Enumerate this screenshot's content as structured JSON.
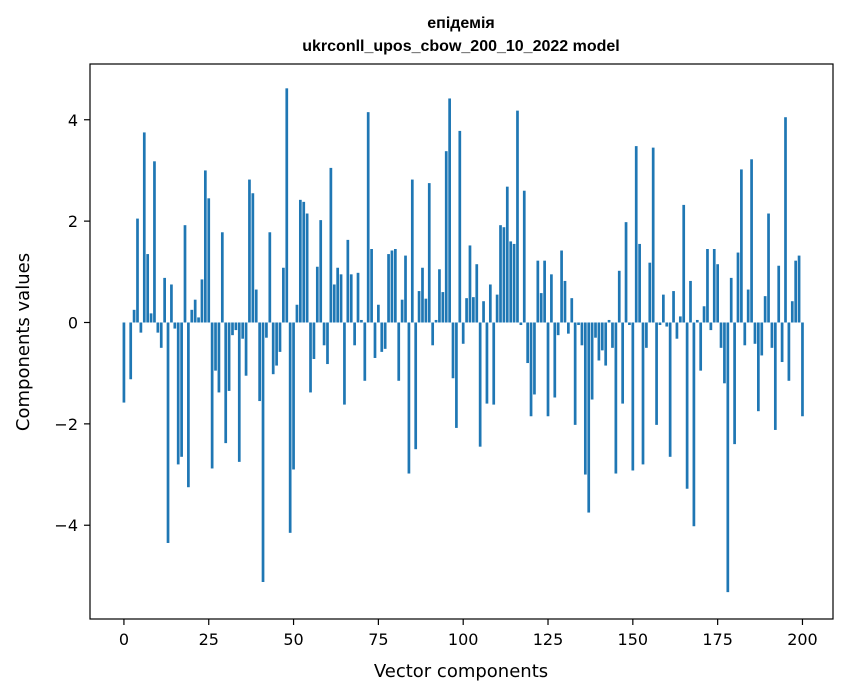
{
  "chart_data": {
    "type": "bar",
    "title": "епідемія",
    "subtitle": "ukrconll_upos_cbow_200_10_2022 model",
    "xlabel": "Vector components",
    "ylabel": "Components values",
    "xlim": [
      -10,
      209
    ],
    "ylim": [
      -5.85,
      5.1
    ],
    "x_ticks": [
      0,
      25,
      50,
      75,
      100,
      125,
      150,
      175,
      200
    ],
    "x_tick_labels": [
      "0",
      "25",
      "50",
      "75",
      "100",
      "125",
      "150",
      "175",
      "200"
    ],
    "y_ticks": [
      -4,
      -2,
      0,
      2,
      4
    ],
    "y_tick_labels": [
      "−4",
      "−2",
      "0",
      "2",
      "4"
    ],
    "grid": false,
    "bar_color": "#1f77b4",
    "values": [
      -1.58,
      0.0,
      -1.12,
      0.25,
      2.05,
      -0.2,
      3.75,
      1.35,
      0.18,
      3.18,
      -0.2,
      -0.5,
      0.88,
      -4.35,
      0.75,
      -0.12,
      -2.8,
      -2.65,
      1.92,
      -3.25,
      0.25,
      0.45,
      0.1,
      0.85,
      3.0,
      2.45,
      -2.88,
      -0.95,
      -1.38,
      1.78,
      -2.38,
      -1.35,
      -0.25,
      -0.15,
      -2.75,
      -0.32,
      -1.05,
      2.82,
      2.55,
      0.65,
      -1.55,
      -5.12,
      -0.3,
      1.78,
      -1.02,
      -0.85,
      -0.58,
      1.08,
      4.62,
      -4.15,
      -2.9,
      0.35,
      2.42,
      2.38,
      2.15,
      -1.38,
      -0.72,
      1.1,
      2.02,
      -0.45,
      -0.82,
      3.05,
      0.75,
      1.08,
      0.95,
      -1.62,
      1.63,
      0.95,
      -0.45,
      0.98,
      0.05,
      -1.15,
      4.15,
      1.45,
      -0.7,
      0.35,
      -0.58,
      -0.52,
      1.35,
      1.42,
      1.45,
      -1.15,
      0.45,
      1.32,
      -2.98,
      2.82,
      -2.5,
      0.62,
      1.08,
      0.47,
      2.75,
      -0.45,
      0.05,
      1.05,
      0.6,
      3.38,
      4.42,
      -1.1,
      -2.08,
      3.78,
      -0.42,
      0.48,
      1.52,
      0.5,
      1.15,
      -2.45,
      0.42,
      -1.6,
      0.75,
      -1.62,
      0.55,
      1.92,
      1.88,
      2.68,
      1.6,
      1.55,
      4.18,
      -0.05,
      2.6,
      -0.8,
      -1.85,
      -1.42,
      1.22,
      0.58,
      1.22,
      -1.85,
      0.95,
      -1.48,
      -0.25,
      1.42,
      0.82,
      -0.22,
      0.48,
      -2.02,
      -0.05,
      -0.45,
      -3.0,
      -3.75,
      -1.52,
      -0.3,
      -0.75,
      -0.55,
      -0.85,
      0.05,
      -0.5,
      -2.98,
      1.02,
      -1.6,
      1.98,
      -0.05,
      -2.92,
      3.48,
      1.55,
      -2.8,
      -0.5,
      1.18,
      3.45,
      -2.02,
      -0.05,
      0.55,
      -0.08,
      -2.65,
      0.62,
      -0.32,
      0.12,
      2.32,
      -3.28,
      0.82,
      -4.02,
      0.05,
      -0.95,
      0.32,
      1.45,
      -0.15,
      1.45,
      1.15,
      -0.5,
      -1.2,
      -5.32,
      0.88,
      -2.4,
      1.38,
      3.02,
      -0.45,
      0.65,
      3.22,
      -0.42,
      -1.75,
      -0.65,
      0.52,
      2.15,
      -0.5,
      -2.12,
      1.12,
      -0.78,
      4.05,
      -1.15,
      0.42,
      1.22,
      1.32,
      -1.85
    ]
  }
}
